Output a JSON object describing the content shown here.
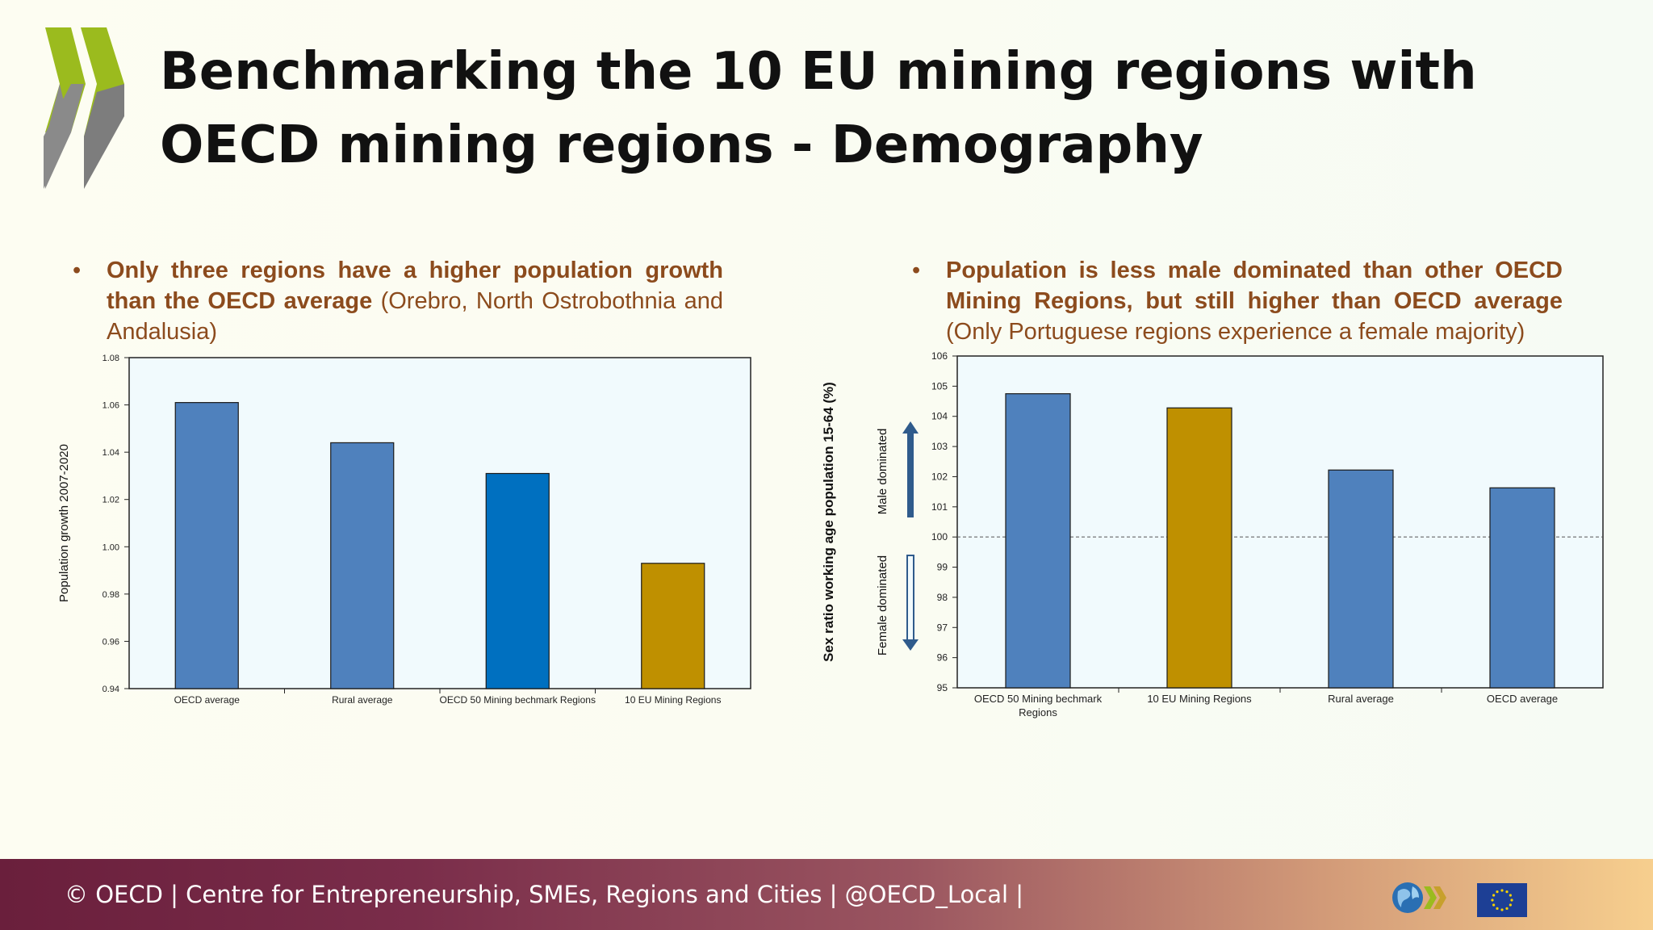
{
  "slide": {
    "title": "Benchmarking the 10 EU mining regions with OECD mining regions - Demography"
  },
  "bullets": {
    "left": {
      "bold": "Only three regions have a higher population growth than the OECD average",
      "normal": " (Orebro, North Ostrobothnia and Andalusia)"
    },
    "right": {
      "bold": "Population is less male dominated than other OECD Mining Regions, but still higher than OECD average",
      "normal": "  (Only Portuguese regions experience a female majority)"
    }
  },
  "chart_data": [
    {
      "type": "bar",
      "ylabel": "Population growth 2007-2020",
      "ylim": [
        0.94,
        1.08
      ],
      "yticks": [
        "0.94",
        "0.96",
        "0.98",
        "1.00",
        "1.02",
        "1.04",
        "1.06",
        "1.08"
      ],
      "categories": [
        "OECD average",
        "Rural average",
        "OECD 50 Mining bechmark Regions",
        "10 EU Mining Regions"
      ],
      "values": [
        1.061,
        1.044,
        1.031,
        0.993
      ],
      "colors": [
        "#4f81bd",
        "#4f81bd",
        "#0070c0",
        "#bf9000"
      ]
    },
    {
      "type": "bar",
      "ylabel": "Sex ratio working age population 15-64 (%)",
      "ylim": [
        95,
        106
      ],
      "yticks": [
        "95",
        "96",
        "97",
        "98",
        "99",
        "100",
        "101",
        "102",
        "103",
        "104",
        "105",
        "106"
      ],
      "categories": [
        "OECD 50 Mining bechmark Regions",
        "10 EU Mining Regions",
        "Rural average",
        "OECD average"
      ],
      "values": [
        104.75,
        104.28,
        102.22,
        101.63
      ],
      "colors": [
        "#4f81bd",
        "#bf9000",
        "#4f81bd",
        "#4f81bd"
      ],
      "reference_line": 100,
      "annotations": [
        "Male dominated",
        "Female dominated"
      ]
    }
  ],
  "footer": {
    "text": "© OECD | Centre for Entrepreneurship, SMEs, Regions and Cities | @OECD_Local |"
  },
  "icons": {
    "logo": "oecd-chevrons-logo",
    "globe": "oecd-globe-logo",
    "flag": "eu-flag-icon"
  },
  "colors": {
    "logo_green": "#9bbb1e",
    "logo_gray": "#8a8a8a",
    "accent_brown": "#8c4b1d",
    "plot_bg": "#f1fafd"
  }
}
